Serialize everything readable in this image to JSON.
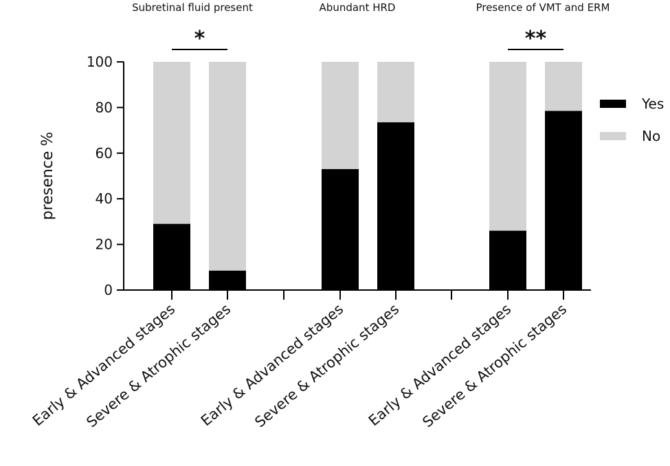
{
  "chart_data": {
    "type": "bar",
    "stacked": true,
    "ylabel": "presence %",
    "ylim": [
      0,
      100
    ],
    "yticks": [
      0,
      20,
      40,
      60,
      80,
      100
    ],
    "grid": false,
    "legend_position": "right",
    "legend": [
      {
        "name": "Yes",
        "color": "#000000"
      },
      {
        "name": "No",
        "color": "#d3d3d3"
      }
    ],
    "groups": [
      {
        "title": "Subretinal fluid present",
        "categories": [
          "Early & Advanced stages",
          "Severe & Atrophic stages"
        ],
        "yes": [
          29,
          8.5
        ],
        "no": [
          71,
          91.5
        ],
        "significance": "*"
      },
      {
        "title": "Abundant HRD",
        "categories": [
          "Early & Advanced stages",
          "Severe & Atrophic stages"
        ],
        "yes": [
          53,
          73.5
        ],
        "no": [
          47,
          26.5
        ],
        "significance": ""
      },
      {
        "title": "Presence of VMT and ERM",
        "categories": [
          "Early & Advanced stages",
          "Severe & Atrophic stages"
        ],
        "yes": [
          26,
          78.5
        ],
        "no": [
          74,
          21.5
        ],
        "significance": "**"
      }
    ],
    "colors": {
      "yes": "#000000",
      "no": "#d3d3d3",
      "axis": "#000000"
    }
  }
}
